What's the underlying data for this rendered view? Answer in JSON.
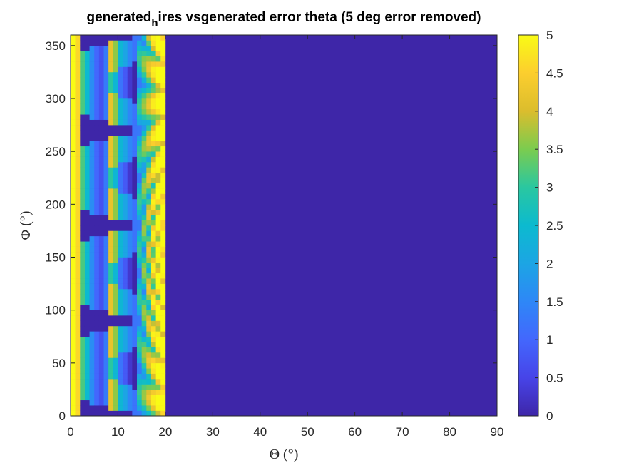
{
  "chart_data": {
    "type": "heatmap",
    "title": {
      "pre": "generated",
      "sub": "h",
      "post": "ires vsgenerated error theta (5 deg error removed)"
    },
    "xlabel": "Θ (°)",
    "ylabel": "Φ (°)",
    "xlim": [
      0,
      90
    ],
    "ylim": [
      0,
      360
    ],
    "x_ticks": [
      "0",
      "10",
      "20",
      "30",
      "40",
      "50",
      "60",
      "70",
      "80",
      "90"
    ],
    "y_ticks": [
      "0",
      "50",
      "100",
      "150",
      "200",
      "250",
      "300",
      "350"
    ],
    "colorbar": {
      "range": [
        0,
        5
      ],
      "ticks": [
        "0",
        "0.5",
        "1",
        "1.5",
        "2",
        "2.5",
        "3",
        "3.5",
        "4",
        "4.5",
        "5"
      ],
      "colormap": "parula"
    },
    "z_description_values": {
      "theta_1deg_columns_0_to_19": [
        5,
        4.6,
        3.2,
        2.5,
        1.6,
        1,
        0.7,
        1.3,
        4.2,
        3.6,
        2.4,
        2,
        1.5,
        1.2,
        2,
        2.6,
        3.2,
        3.8,
        4.4,
        5
      ],
      "beyond_theta_19": 0,
      "phi_period_deg": 90,
      "phi_notch_centres_deg": [
        0,
        90,
        180,
        270,
        360
      ]
    }
  }
}
